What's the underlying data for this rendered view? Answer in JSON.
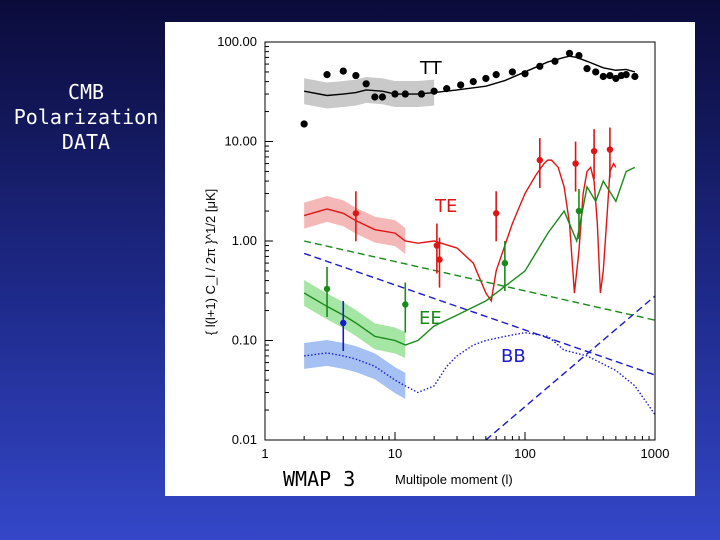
{
  "slide": {
    "side_title": "CMB\nPolarization\nDATA"
  },
  "chart_data": {
    "type": "line",
    "xlabel": "Multipole moment (l)",
    "ylabel": "{ l(l+1) C_l / 2π }^1/2  [μK]",
    "x_scale": "log",
    "y_scale": "log",
    "xlim": [
      1,
      1000
    ],
    "ylim": [
      0.01,
      100
    ],
    "x_ticks": [
      "1",
      "10",
      "100",
      "1000"
    ],
    "y_ticks": [
      "100.00",
      "10.00",
      "1.00",
      "0.10",
      "0.01"
    ],
    "grid": false,
    "annotations": [
      "TT",
      "TE",
      "EE",
      "BB",
      "WMAP 3"
    ],
    "colors": {
      "TT": "#000000",
      "TE": "#e11414",
      "EE": "#1a8a1a",
      "BB": "#1a1acc"
    },
    "series": [
      {
        "name": "TT",
        "x": [
          2,
          3,
          4,
          5,
          6,
          8,
          10,
          15,
          20,
          30,
          50,
          70,
          100,
          150,
          200,
          220,
          250,
          300,
          400,
          500,
          600,
          700
        ],
        "y": [
          32,
          29,
          30,
          31,
          33,
          32,
          30,
          30,
          31,
          33,
          36,
          41,
          50,
          63,
          70,
          72,
          70,
          64,
          55,
          52,
          53,
          50
        ],
        "points": {
          "x": [
            2,
            3,
            4,
            5,
            6,
            7,
            8,
            10,
            12,
            16,
            20,
            25,
            32,
            40,
            50,
            60,
            80,
            100,
            130,
            170,
            220,
            260,
            300,
            350,
            400,
            450,
            500,
            550,
            600,
            700
          ],
          "y": [
            15,
            47,
            51,
            46,
            38,
            28,
            28,
            30,
            30,
            30,
            32,
            34,
            37,
            40,
            43,
            47,
            50,
            48,
            57,
            64,
            77,
            73,
            54,
            50,
            45,
            46,
            43,
            46,
            47,
            45
          ]
        }
      },
      {
        "name": "TE",
        "x": [
          2,
          3,
          4,
          5,
          7,
          10,
          12,
          15,
          20,
          30,
          40,
          50,
          55,
          60,
          80,
          100,
          120,
          140,
          150,
          160,
          180,
          200,
          220,
          240,
          260,
          280,
          300,
          320,
          340,
          360,
          380,
          400,
          430,
          450,
          480,
          500
        ],
        "y": [
          1.8,
          2.1,
          1.9,
          1.6,
          1.3,
          1.2,
          1.0,
          0.95,
          1.0,
          0.85,
          0.6,
          0.3,
          0.25,
          0.5,
          1.5,
          3.0,
          4.5,
          6.0,
          6.5,
          6.5,
          5.5,
          3.5,
          1.5,
          0.3,
          0.8,
          3.0,
          5.0,
          5.5,
          4.0,
          1.5,
          0.3,
          0.5,
          2.0,
          5.0,
          6.0,
          5.5
        ],
        "points": {
          "x": [
            5,
            21,
            22,
            60,
            130,
            245,
            340,
            450
          ],
          "y": [
            1.9,
            0.9,
            0.65,
            1.9,
            6.5,
            6.0,
            8.0,
            8.3
          ]
        }
      },
      {
        "name": "EE",
        "x": [
          2,
          3,
          4,
          5,
          7,
          10,
          12,
          15,
          20,
          30,
          50,
          70,
          100,
          150,
          200,
          250,
          300,
          350,
          400,
          500,
          600,
          700
        ],
        "y": [
          0.3,
          0.22,
          0.18,
          0.15,
          0.11,
          0.1,
          0.09,
          0.1,
          0.14,
          0.18,
          0.25,
          0.35,
          0.5,
          1.2,
          2.0,
          1.0,
          3.5,
          2.5,
          4.0,
          2.5,
          5.0,
          5.5
        ],
        "points": {
          "x": [
            3,
            12,
            70,
            260
          ],
          "y": [
            0.33,
            0.23,
            0.6,
            2.0
          ]
        }
      },
      {
        "name": "EE lensed (dashed)",
        "x": [
          2,
          1000
        ],
        "y": [
          1.0,
          0.16
        ]
      },
      {
        "name": "BB",
        "x": [
          2,
          3,
          4,
          5,
          7,
          10,
          12,
          15,
          20,
          25,
          30,
          40,
          50,
          70,
          100,
          150,
          200,
          300,
          500,
          700,
          1000
        ],
        "y": [
          0.07,
          0.075,
          0.07,
          0.065,
          0.055,
          0.04,
          0.035,
          0.03,
          0.035,
          0.055,
          0.07,
          0.09,
          0.1,
          0.11,
          0.12,
          0.11,
          0.08,
          0.07,
          0.05,
          0.035,
          0.018
        ],
        "points": {
          "x": [
            4
          ],
          "y": [
            0.15
          ]
        }
      },
      {
        "name": "BB lensing (dashed)",
        "x": [
          2,
          1000
        ],
        "y": [
          0.75,
          0.045
        ]
      },
      {
        "name": "BB rising (dashed)",
        "x": [
          50,
          1000
        ],
        "y": [
          0.01,
          0.28
        ]
      }
    ]
  }
}
